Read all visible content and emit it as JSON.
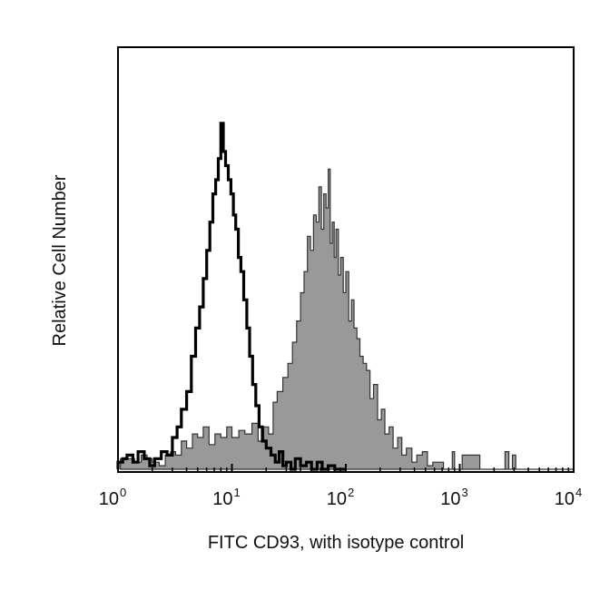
{
  "chart_data": {
    "type": "area",
    "title": "",
    "xlabel": "FITC CD93, with isotype control",
    "ylabel": "Relative Cell Number",
    "x_scale": "log",
    "xlim": [
      1,
      10000
    ],
    "ylim": [
      0,
      1
    ],
    "grid": false,
    "x_ticks": [
      {
        "base": "10",
        "exp": "0",
        "value": 1
      },
      {
        "base": "10",
        "exp": "1",
        "value": 10
      },
      {
        "base": "10",
        "exp": "2",
        "value": 100
      },
      {
        "base": "10",
        "exp": "3",
        "value": 1000
      },
      {
        "base": "10",
        "exp": "4",
        "value": 10000
      }
    ],
    "series": [
      {
        "role": "filled-gray",
        "color": "#999999",
        "x": [
          1.05,
          1.2,
          1.4,
          1.6,
          1.8,
          2.0,
          2.3,
          2.6,
          2.9,
          3.2,
          3.6,
          4.0,
          4.5,
          5.0,
          5.6,
          6.3,
          7.1,
          8.0,
          9.0,
          10,
          11.5,
          13,
          15,
          17,
          19,
          21,
          23,
          25,
          28,
          31,
          34,
          37,
          40,
          43,
          46,
          49,
          52,
          55,
          58,
          61,
          64,
          67,
          70,
          73,
          76,
          79,
          82,
          86,
          90,
          95,
          100,
          106,
          112,
          118,
          125,
          133,
          142,
          152,
          163,
          175,
          190,
          205,
          220,
          240,
          260,
          285,
          310,
          340,
          380,
          420,
          470,
          520,
          580,
          650,
          720,
          800,
          860,
          900,
          950,
          1000,
          1050,
          1500,
          1900,
          2300,
          2500,
          2700,
          2900,
          3100,
          3400,
          4000,
          10000
        ],
        "y": [
          0.03,
          0.03,
          0.02,
          0.04,
          0.03,
          0.02,
          0.01,
          0.04,
          0.05,
          0.04,
          0.08,
          0.06,
          0.1,
          0.09,
          0.12,
          0.07,
          0.1,
          0.09,
          0.12,
          0.09,
          0.11,
          0.1,
          0.13,
          0.08,
          0.12,
          0.1,
          0.19,
          0.22,
          0.26,
          0.3,
          0.36,
          0.42,
          0.5,
          0.56,
          0.66,
          0.62,
          0.72,
          0.7,
          0.8,
          0.68,
          0.78,
          0.74,
          0.85,
          0.64,
          0.7,
          0.6,
          0.68,
          0.55,
          0.6,
          0.5,
          0.56,
          0.42,
          0.48,
          0.4,
          0.37,
          0.32,
          0.3,
          0.28,
          0.2,
          0.24,
          0.14,
          0.17,
          0.1,
          0.12,
          0.06,
          0.09,
          0.04,
          0.06,
          0.02,
          0.04,
          0.05,
          0.01,
          0.02,
          0.02,
          0.0,
          0.0,
          0.05,
          0.0,
          0.0,
          0.0,
          0.04,
          0.0,
          0.0,
          0.0,
          0.05,
          0.0,
          0.04,
          0.0,
          0.0,
          0.0,
          0.0
        ]
      },
      {
        "role": "open-black-isotype",
        "color": "#000000",
        "x": [
          1.0,
          1.1,
          1.2,
          1.35,
          1.5,
          1.7,
          1.9,
          2.1,
          2.4,
          2.7,
          3.0,
          3.3,
          3.6,
          4.0,
          4.4,
          4.8,
          5.2,
          5.6,
          6.0,
          6.4,
          6.8,
          7.2,
          7.6,
          8.0,
          8.4,
          8.8,
          9.3,
          9.8,
          10.3,
          10.8,
          11.4,
          12,
          12.7,
          13.5,
          14.3,
          15.2,
          16.2,
          17.3,
          18.5,
          20,
          22,
          24,
          26,
          28,
          30,
          33,
          36,
          40,
          45,
          50,
          56,
          62,
          70,
          80,
          90,
          100
        ],
        "y": [
          0.02,
          0.03,
          0.04,
          0.02,
          0.05,
          0.03,
          0.01,
          0.03,
          0.05,
          0.04,
          0.09,
          0.12,
          0.17,
          0.22,
          0.32,
          0.4,
          0.46,
          0.54,
          0.62,
          0.7,
          0.78,
          0.82,
          0.88,
          0.98,
          0.9,
          0.86,
          0.82,
          0.78,
          0.72,
          0.68,
          0.6,
          0.56,
          0.48,
          0.4,
          0.32,
          0.24,
          0.18,
          0.12,
          0.08,
          0.06,
          0.04,
          0.02,
          0.05,
          0.01,
          0.02,
          0.0,
          0.03,
          0.01,
          0.02,
          0.0,
          0.02,
          0.0,
          0.01,
          0.0,
          0.0,
          0.0
        ]
      }
    ]
  }
}
